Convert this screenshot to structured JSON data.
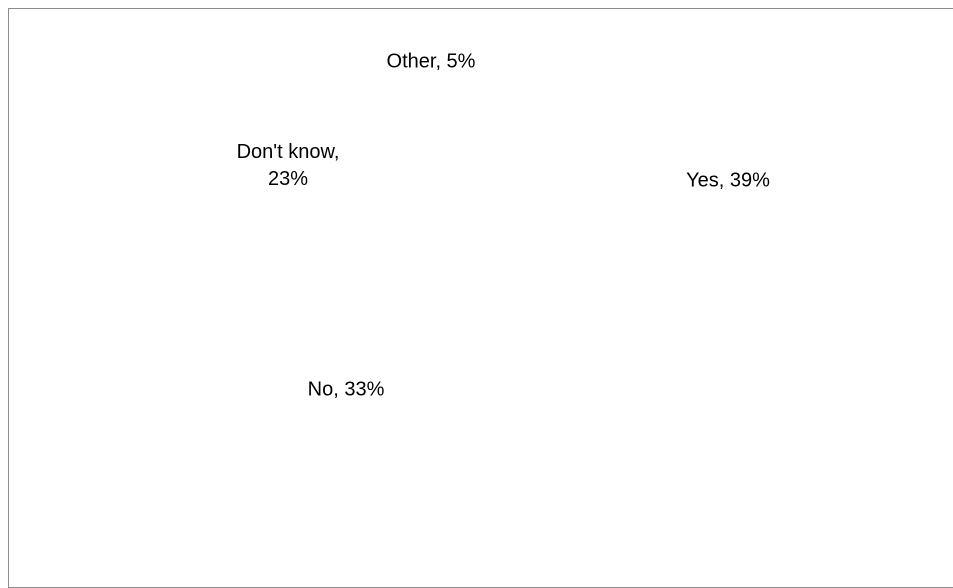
{
  "chart_data": {
    "type": "pie",
    "title": "",
    "slices": [
      {
        "label": "Yes",
        "value": 39,
        "text_lines": [
          "Yes, 39%"
        ]
      },
      {
        "label": "No",
        "value": 33,
        "text_lines": [
          "No, 33%"
        ]
      },
      {
        "label": "Don't know",
        "value": 23,
        "text_lines": [
          "Don't know,",
          "23%"
        ]
      },
      {
        "label": "Other",
        "value": 5,
        "text_lines": [
          "Other, 5%"
        ]
      }
    ],
    "legend": "none",
    "background_color": "#ffffff",
    "border_color": "#8c8c8c",
    "label_color": "#000000"
  }
}
